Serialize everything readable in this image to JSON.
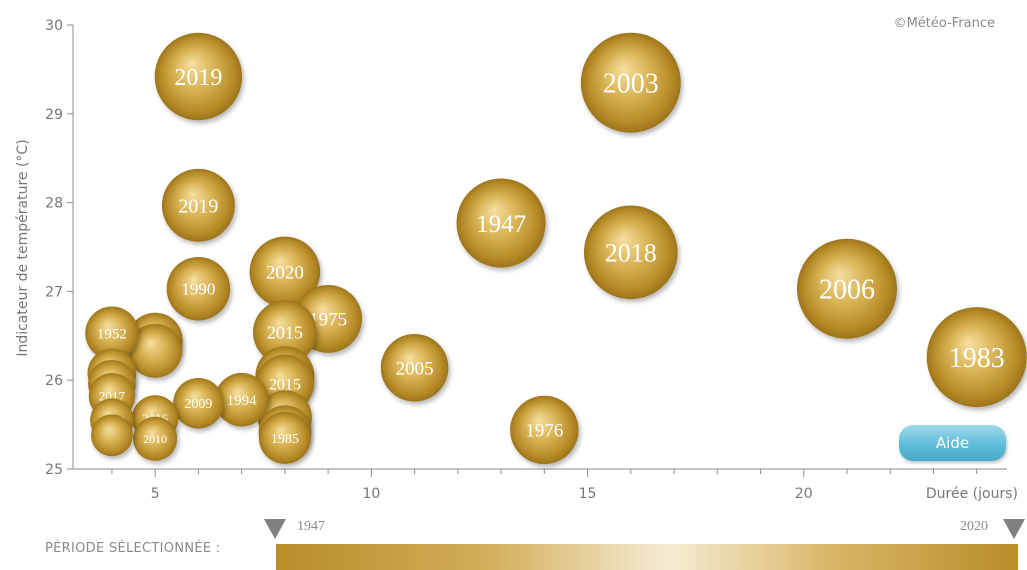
{
  "credit": "©Météo-France",
  "help_label": "Aide",
  "period": {
    "label": "PÉRIODE SÉLECTIONNÉE :",
    "start": "1947",
    "end": "2020"
  },
  "chart_data": {
    "type": "scatter",
    "subtype": "bubble",
    "title": "",
    "xlabel": "Durée (jours)",
    "ylabel": "Indicateur de température (°C)",
    "xlim": [
      3.1,
      24.7
    ],
    "ylim": [
      25,
      30
    ],
    "xticks": [
      5,
      10,
      15,
      20
    ],
    "yticks": [
      25,
      26,
      27,
      28,
      29,
      30
    ],
    "grid": false,
    "bubble_color": "#c9a030",
    "points": [
      {
        "label": "2003",
        "x": 16,
        "y": 29.35
      },
      {
        "label": "2019",
        "x": 6,
        "y": 29.42
      },
      {
        "label": "2019",
        "x": 6,
        "y": 27.97
      },
      {
        "label": "1947",
        "x": 13,
        "y": 27.77
      },
      {
        "label": "2018",
        "x": 16,
        "y": 27.44
      },
      {
        "label": "2020",
        "x": 8,
        "y": 27.22
      },
      {
        "label": "1990",
        "x": 6,
        "y": 27.03
      },
      {
        "label": "2006",
        "x": 21,
        "y": 27.03
      },
      {
        "label": "1975",
        "x": 9,
        "y": 26.69
      },
      {
        "label": "2015",
        "x": 8,
        "y": 26.54
      },
      {
        "label": "1952",
        "x": 4,
        "y": 26.53
      },
      {
        "label": "2017",
        "x": 5,
        "y": 26.45
      },
      {
        "label": "",
        "x": 5,
        "y": 26.33
      },
      {
        "label": "1983",
        "x": 24,
        "y": 26.26
      },
      {
        "label": "2005",
        "x": 11,
        "y": 26.14
      },
      {
        "label": "",
        "x": 4,
        "y": 26.08
      },
      {
        "label": "",
        "x": 8,
        "y": 26.05
      },
      {
        "label": "",
        "x": 4,
        "y": 25.96
      },
      {
        "label": "2015",
        "x": 8,
        "y": 25.96
      },
      {
        "label": "2017",
        "x": 4,
        "y": 25.82
      },
      {
        "label": "1994",
        "x": 7,
        "y": 25.78
      },
      {
        "label": "2009",
        "x": 6,
        "y": 25.74
      },
      {
        "label": "2016",
        "x": 5,
        "y": 25.57
      },
      {
        "label": "2017",
        "x": 4,
        "y": 25.55
      },
      {
        "label": "",
        "x": 8,
        "y": 25.58
      },
      {
        "label": "1976",
        "x": 14,
        "y": 25.44
      },
      {
        "label": "",
        "x": 8,
        "y": 25.42
      },
      {
        "label": "",
        "x": 4,
        "y": 25.38
      },
      {
        "label": "1985",
        "x": 8,
        "y": 25.35
      },
      {
        "label": "2010",
        "x": 5,
        "y": 25.34
      }
    ]
  }
}
